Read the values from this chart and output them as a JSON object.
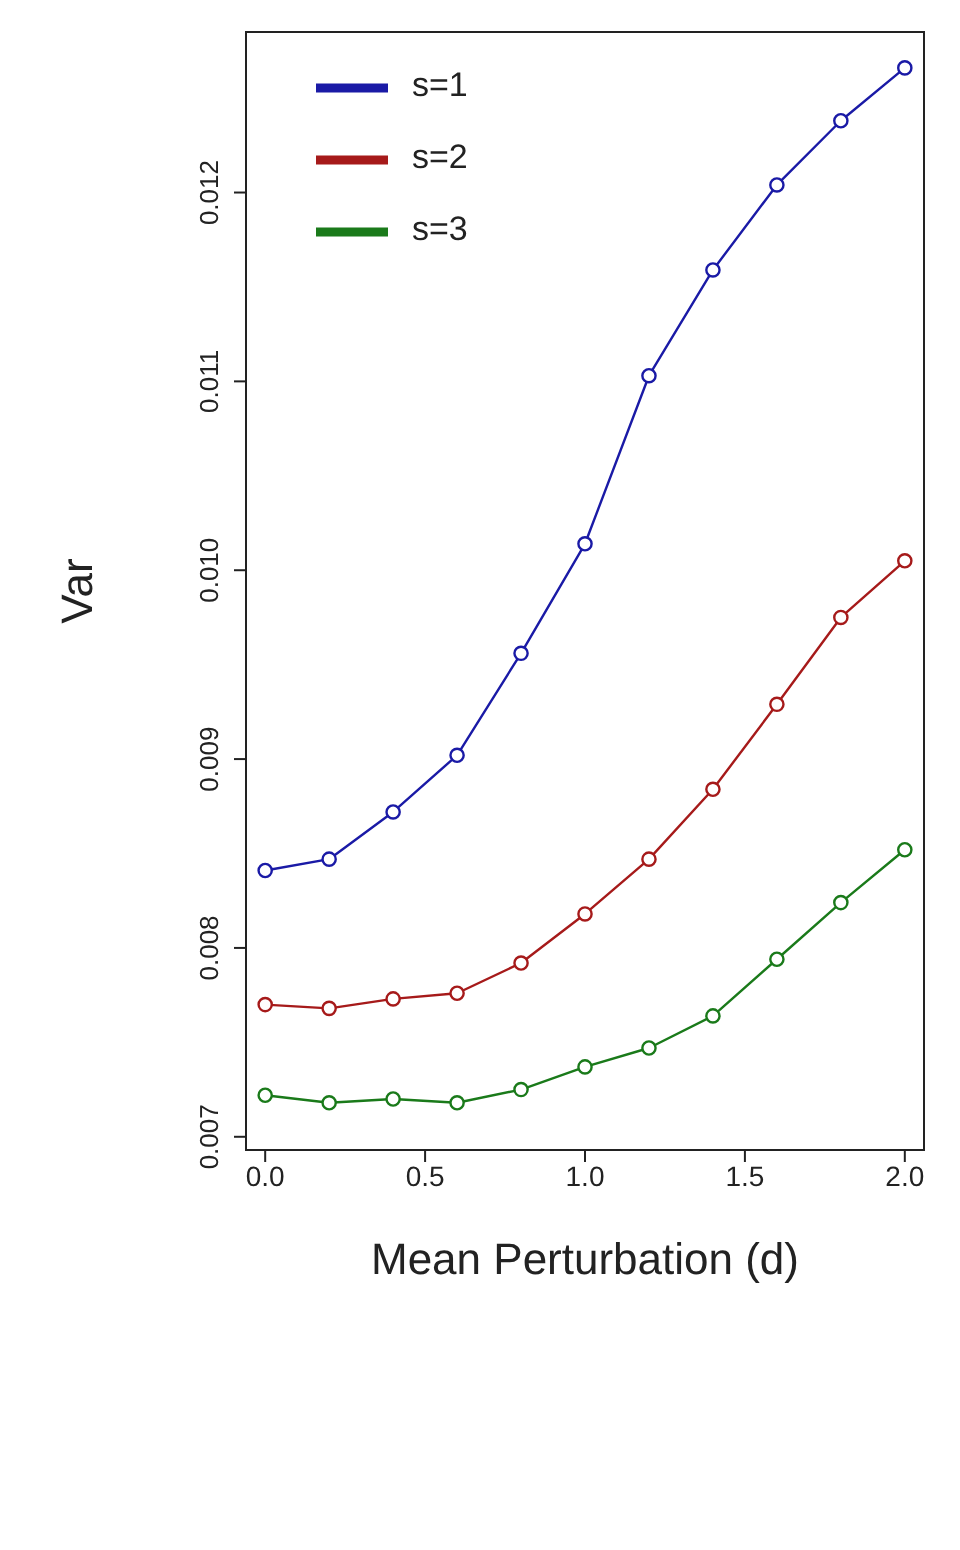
{
  "chart_data": {
    "type": "line",
    "xlabel": "Mean Perturbation (d)",
    "ylabel": "Var",
    "x": [
      0.0,
      0.2,
      0.4,
      0.6,
      0.8,
      1.0,
      1.2,
      1.4,
      1.6,
      1.8,
      2.0
    ],
    "series": [
      {
        "name": "s=1",
        "color": "#1a1aa6",
        "values": [
          0.00841,
          0.00847,
          0.00872,
          0.00902,
          0.00956,
          0.01014,
          0.01103,
          0.01159,
          0.01204,
          0.01238,
          0.01266
        ]
      },
      {
        "name": "s=2",
        "color": "#a61a1a",
        "values": [
          0.0077,
          0.00768,
          0.00773,
          0.00776,
          0.00792,
          0.00818,
          0.00847,
          0.00884,
          0.00929,
          0.00975,
          0.01005
        ]
      },
      {
        "name": "s=3",
        "color": "#1a7a1a",
        "values": [
          0.00722,
          0.00718,
          0.0072,
          0.00718,
          0.00725,
          0.00737,
          0.00747,
          0.00764,
          0.00794,
          0.00824,
          0.00852
        ]
      }
    ],
    "xlim": [
      -0.06,
      2.06
    ],
    "xticks": [
      {
        "value": 0,
        "label": "0.0"
      },
      {
        "value": 0.5,
        "label": "0.5"
      },
      {
        "value": 1,
        "label": "1.0"
      },
      {
        "value": 1.5,
        "label": "1.5"
      },
      {
        "value": 2,
        "label": "2.0"
      }
    ],
    "ylim": [
      0.00693,
      0.01285
    ],
    "yticks": [
      {
        "value": 0.007,
        "label": "0.007"
      },
      {
        "value": 0.008,
        "label": "0.008"
      },
      {
        "value": 0.009,
        "label": "0.009"
      },
      {
        "value": 0.01,
        "label": "0.010"
      },
      {
        "value": 0.011,
        "label": "0.011"
      },
      {
        "value": 0.012,
        "label": "0.012"
      }
    ],
    "grid": false,
    "legend": "top left",
    "marker": "circle",
    "line_style": "solid"
  }
}
